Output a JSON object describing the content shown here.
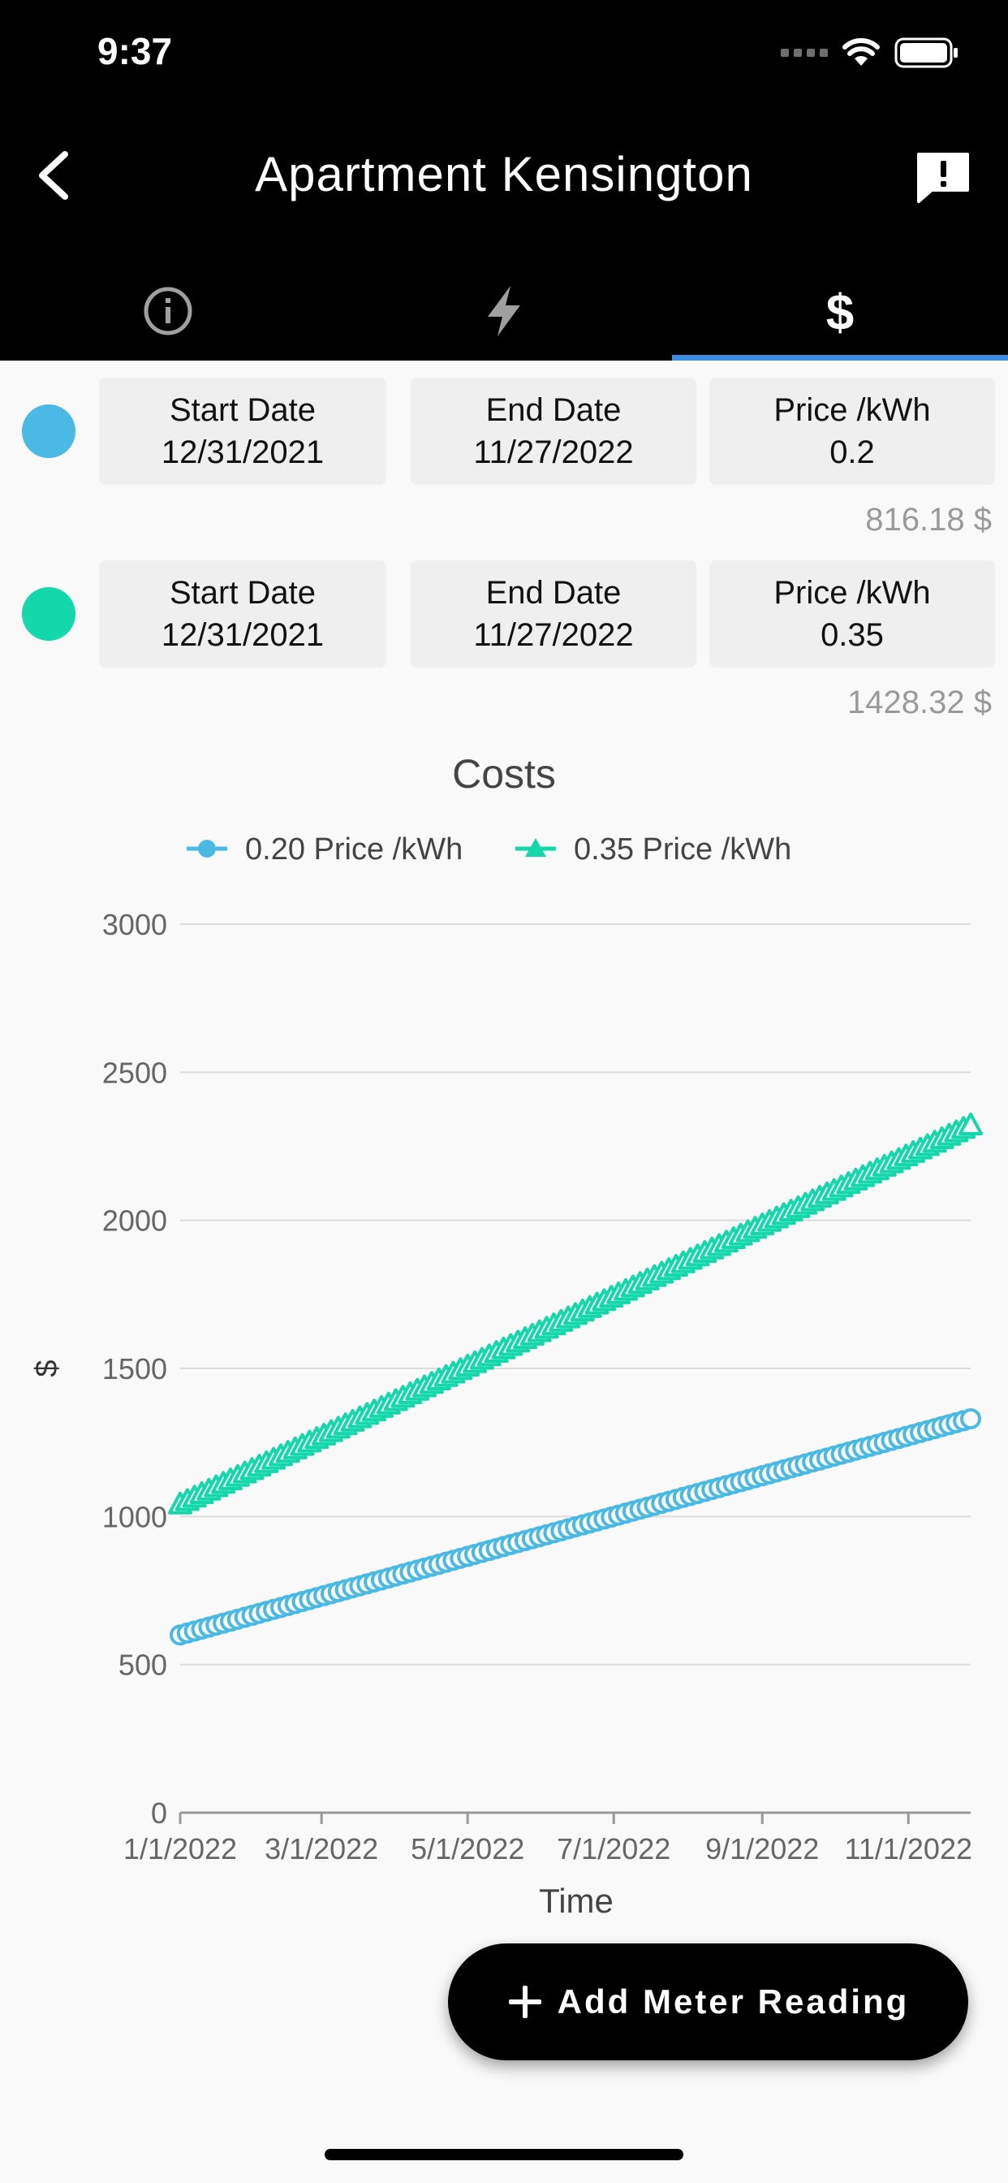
{
  "status_bar": {
    "time": "9:37"
  },
  "header": {
    "title": "Apartment Kensington"
  },
  "tabs": [
    {
      "icon": "info-icon"
    },
    {
      "icon": "lightning-icon"
    },
    {
      "icon": "dollar-icon",
      "selected": true
    }
  ],
  "periods": [
    {
      "color": "#4ab9e4",
      "start_label": "Start Date",
      "start_value": "12/31/2021",
      "end_label": "End Date",
      "end_value": "11/27/2022",
      "price_label": "Price /kWh",
      "price_value": "0.2",
      "cost": "816.18 $"
    },
    {
      "color": "#13d8aa",
      "start_label": "Start Date",
      "start_value": "12/31/2021",
      "end_label": "End Date",
      "end_value": "11/27/2022",
      "price_label": "Price /kWh",
      "price_value": "0.35",
      "cost": "1428.32 $"
    }
  ],
  "chart_data": {
    "type": "line",
    "title": "Costs",
    "xlabel": "Time",
    "ylabel": "$",
    "x_range": [
      "2022-01-01",
      "2022-11-27"
    ],
    "ylim": [
      0,
      3000
    ],
    "y_ticks": [
      0,
      500,
      1000,
      1500,
      2000,
      2500,
      3000
    ],
    "x_ticks": [
      "1/1/2022",
      "3/1/2022",
      "5/1/2022",
      "7/1/2022",
      "9/1/2022",
      "11/1/2022"
    ],
    "grid": "horizontal",
    "legend": "top-center",
    "series": [
      {
        "name": "0.20 Price /kWh",
        "color": "#4ab9e4",
        "marker": "circle",
        "start": {
          "x": "2022-01-01",
          "y": 600
        },
        "end": {
          "x": "2022-11-27",
          "y": 1330
        }
      },
      {
        "name": "0.35 Price /kWh",
        "color": "#13d8aa",
        "marker": "triangle",
        "start": {
          "x": "2022-01-01",
          "y": 1040
        },
        "end": {
          "x": "2022-11-27",
          "y": 2320
        }
      }
    ]
  },
  "fab": {
    "label": "Add Meter Reading"
  }
}
